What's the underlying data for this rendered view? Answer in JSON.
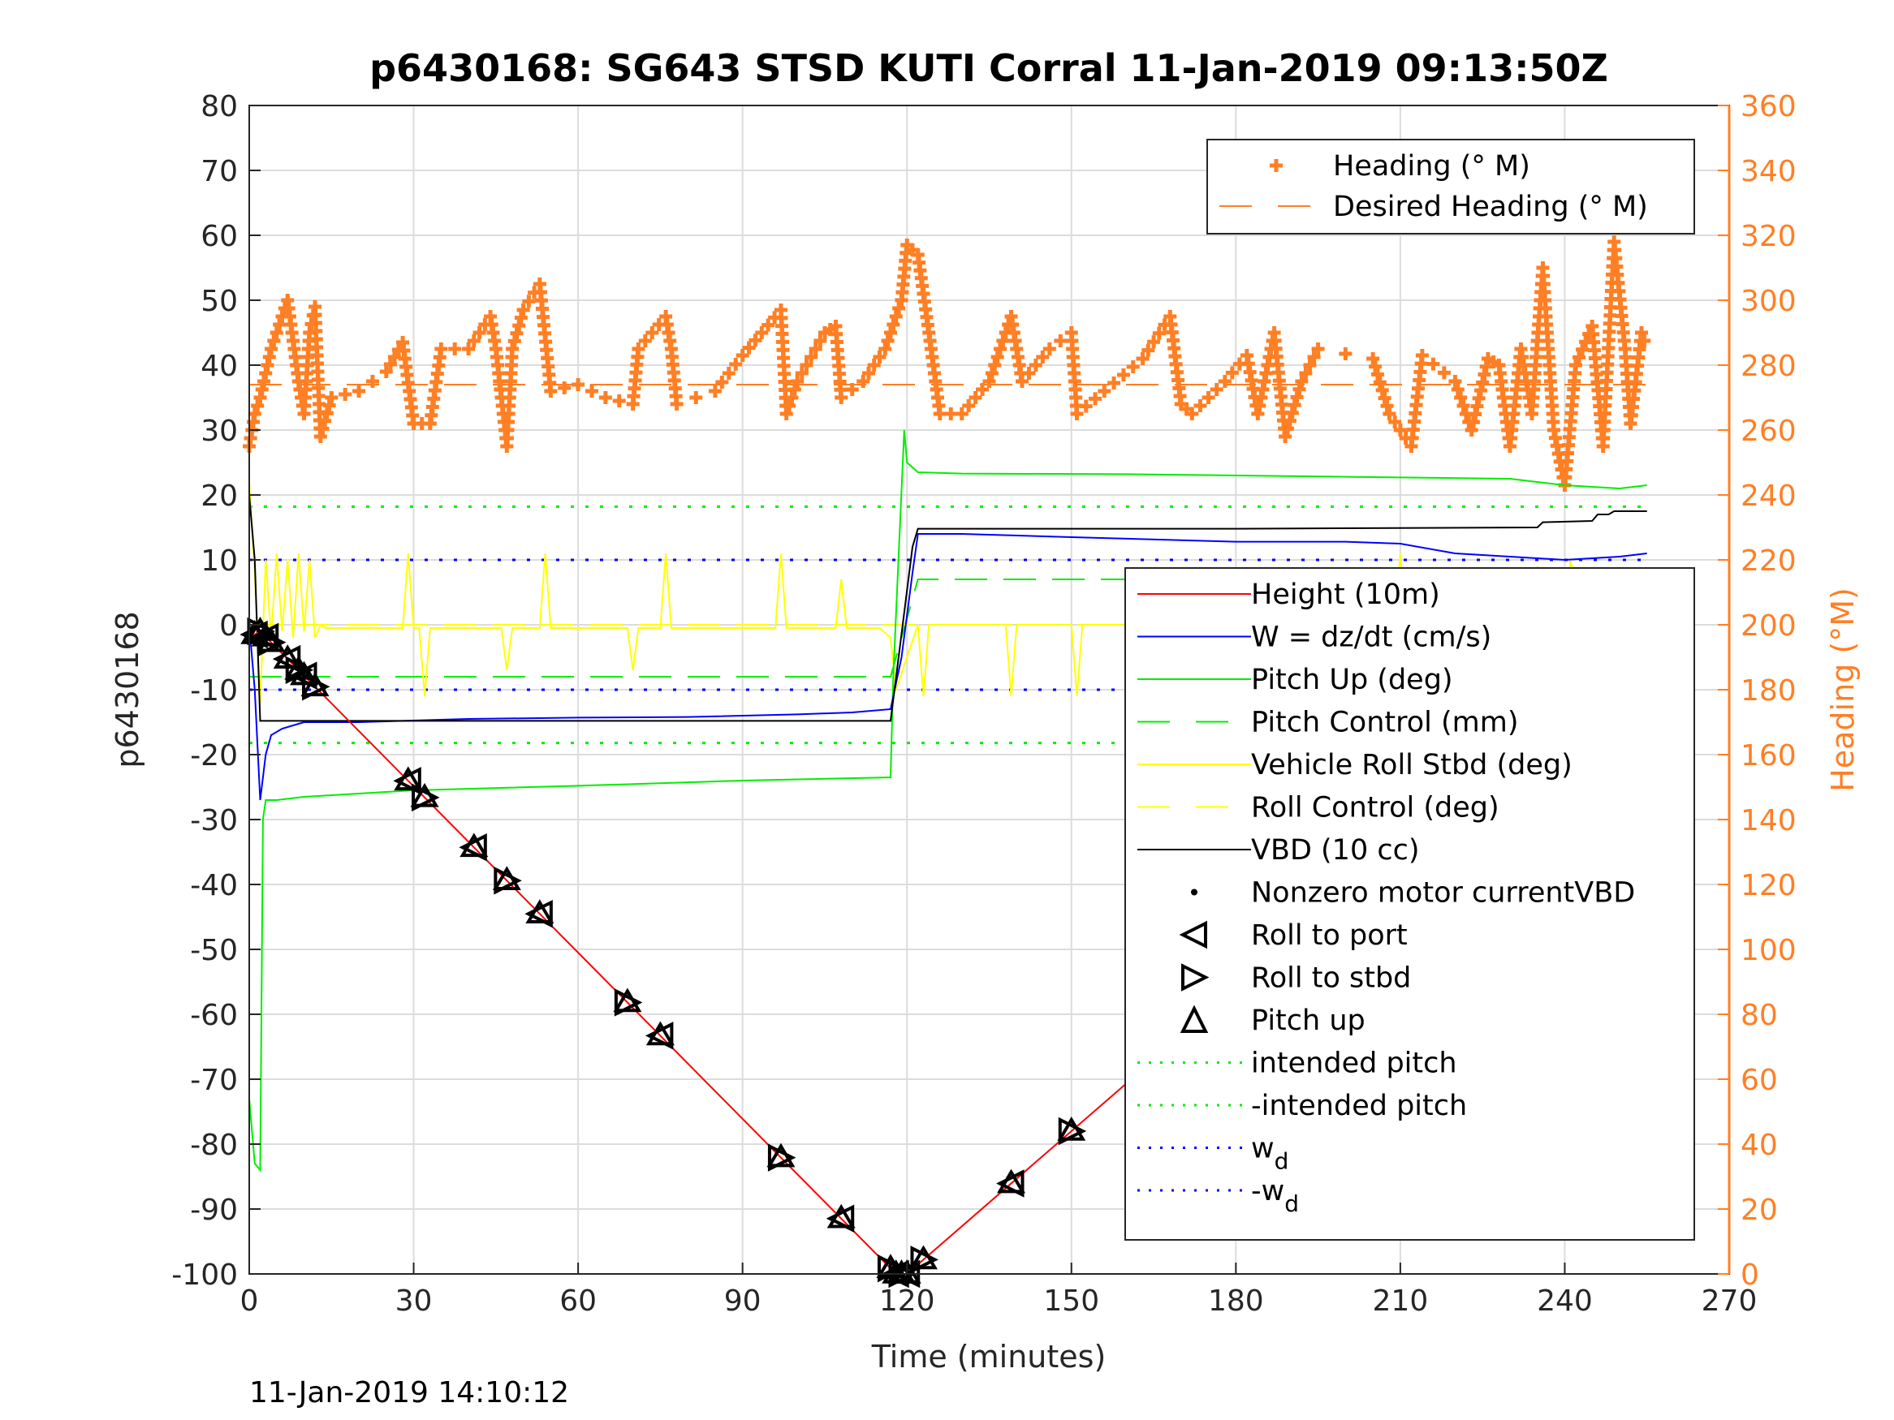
{
  "chart_data": {
    "type": "line",
    "title": "p6430168: SG643 STSD KUTI Corral 11-Jan-2019 09:13:50Z",
    "xlabel": "Time (minutes)",
    "ylabel": "p6430168",
    "ylabel_right": "Heading (°M)",
    "footer": "11-Jan-2019 14:10:12",
    "xlim": [
      0,
      270
    ],
    "ylim": [
      -100,
      80
    ],
    "ylim_right": [
      0,
      360
    ],
    "xticks": [
      "0",
      "30",
      "60",
      "90",
      "120",
      "150",
      "180",
      "210",
      "240",
      "270"
    ],
    "yticks": [
      "80",
      "70",
      "60",
      "50",
      "40",
      "30",
      "20",
      "10",
      "0",
      "-10",
      "-20",
      "-30",
      "-40",
      "-50",
      "-60",
      "-70",
      "-80",
      "-90",
      "-100"
    ],
    "yticks_right": [
      "360",
      "340",
      "320",
      "300",
      "280",
      "260",
      "240",
      "220",
      "200",
      "180",
      "160",
      "140",
      "120",
      "100",
      "80",
      "60",
      "40",
      "20",
      "0"
    ],
    "grid": true,
    "colors": {
      "heading": "#ff7f24",
      "height": "#ff0000",
      "w": "#0000ff",
      "pitch": "#00ee00",
      "roll": "#ffff00",
      "vbd": "#000000"
    },
    "legend_top": [
      {
        "label": "Heading (° M)",
        "style": "plus",
        "color": "#ff7f24"
      },
      {
        "label": "Desired Heading (° M)",
        "style": "dash",
        "color": "#ff7f24"
      }
    ],
    "legend_main": [
      {
        "label": "Height (10m)",
        "style": "solid",
        "color": "#ff0000"
      },
      {
        "label": "W = dz/dt (cm/s)",
        "style": "solid",
        "color": "#0000ff"
      },
      {
        "label": "Pitch Up (deg)",
        "style": "solid",
        "color": "#00ee00"
      },
      {
        "label": "Pitch Control (mm)",
        "style": "dash",
        "color": "#00ee00"
      },
      {
        "label": "Vehicle Roll Stbd (deg)",
        "style": "solid",
        "color": "#ffff00"
      },
      {
        "label": "Roll Control (deg)",
        "style": "dash",
        "color": "#ffff00"
      },
      {
        "label": "VBD (10 cc)",
        "style": "solid",
        "color": "#000000"
      },
      {
        "label": "Nonzero motor currentVBD",
        "style": "dot",
        "color": "#000000"
      },
      {
        "label": "Roll to port",
        "style": "tri-left",
        "color": "#000000"
      },
      {
        "label": "Roll to stbd",
        "style": "tri-right",
        "color": "#000000"
      },
      {
        "label": "Pitch up",
        "style": "tri-up",
        "color": "#000000"
      },
      {
        "label": "intended pitch",
        "style": "dotted",
        "color": "#00ee00"
      },
      {
        "label": "-intended pitch",
        "style": "dotted",
        "color": "#00ee00"
      },
      {
        "label": "w",
        "sub": "d",
        "style": "dotted",
        "color": "#0000ff"
      },
      {
        "label": "-w",
        "sub": "d",
        "style": "dotted",
        "color": "#0000ff"
      }
    ],
    "series": [
      {
        "name": "Height (10m)",
        "axis": "left",
        "x": [
          0,
          2,
          118,
          120,
          255
        ],
        "y": [
          -2,
          -1,
          -100,
          -100,
          -1
        ]
      },
      {
        "name": "W = dz/dt (cm/s)",
        "axis": "left",
        "x": [
          0,
          1,
          2,
          3,
          4,
          6,
          8,
          10,
          20,
          40,
          60,
          80,
          100,
          110,
          117,
          119,
          121,
          122,
          130,
          150,
          180,
          200,
          210,
          220,
          230,
          240,
          250,
          255
        ],
        "y": [
          0,
          -10,
          -27,
          -20,
          -17,
          -16,
          -15.5,
          -15,
          -15,
          -14.5,
          -14.3,
          -14.2,
          -13.8,
          -13.5,
          -13,
          -5,
          8,
          14,
          14,
          13.5,
          12.8,
          12.8,
          12.5,
          11,
          10.5,
          10,
          10.5,
          11
        ]
      },
      {
        "name": "Pitch Up (deg)",
        "axis": "left",
        "x": [
          0,
          1,
          2,
          2.5,
          3,
          5,
          10,
          30,
          60,
          90,
          117,
          117.5,
          119.5,
          120,
          122,
          130,
          160,
          200,
          230,
          240,
          250,
          255
        ],
        "y": [
          -73,
          -83,
          -84,
          -30,
          -27,
          -27,
          -26.5,
          -25.5,
          -24.8,
          -24,
          -23.5,
          -8,
          30,
          25,
          23.5,
          23.3,
          23.2,
          22.8,
          22.5,
          21.5,
          21,
          21.5
        ]
      },
      {
        "name": "Pitch Control (mm)",
        "axis": "left",
        "x": [
          0,
          117,
          122,
          255
        ],
        "y": [
          -8,
          -8,
          7,
          7
        ]
      },
      {
        "name": "Vehicle Roll Stbd (deg)",
        "axis": "left",
        "x": [
          0,
          1,
          2,
          3,
          4,
          5,
          6,
          7,
          8,
          9,
          10,
          11,
          12,
          13,
          14,
          28,
          29,
          30,
          31,
          32,
          33,
          34,
          46,
          47,
          48,
          53,
          54,
          55,
          56,
          69,
          70,
          71,
          75,
          76,
          77,
          78,
          96,
          97,
          98,
          107,
          108,
          109,
          115,
          117,
          118,
          122,
          123,
          124,
          125,
          138,
          139,
          140,
          141,
          150,
          151,
          152,
          165,
          166,
          167,
          182,
          183,
          184,
          193,
          194,
          195,
          209,
          210,
          211,
          220,
          221,
          222,
          223,
          227,
          228,
          229,
          233,
          234,
          235,
          239,
          240,
          241,
          245,
          246,
          247,
          251,
          252,
          253,
          254,
          255
        ],
        "y": [
          22,
          8,
          -12,
          10,
          -2,
          11,
          -1,
          10,
          -2,
          11,
          -1,
          10,
          -2,
          0,
          -0.5,
          -0.5,
          11,
          -0.5,
          -0.5,
          -11,
          -0.5,
          -0.5,
          -0.5,
          -7,
          -0.5,
          -0.5,
          11,
          -0.5,
          -0.5,
          -0.5,
          -7,
          -0.5,
          -0.5,
          11,
          -0.5,
          -0.5,
          -0.5,
          11,
          -0.5,
          -0.5,
          7,
          -0.5,
          -0.5,
          -2,
          -10,
          0,
          -11,
          0,
          0,
          0,
          -11,
          0,
          0,
          0,
          -11,
          0,
          0,
          -11,
          0,
          0,
          8,
          0,
          0,
          -11,
          0,
          0,
          11,
          0,
          0,
          8,
          -11,
          0,
          0,
          -11,
          8,
          0,
          -11,
          9,
          -2,
          -11,
          10,
          -3,
          -11,
          8,
          -3,
          -11,
          -4,
          -11,
          -6
        ]
      },
      {
        "name": "Roll Control (deg)",
        "axis": "left",
        "x": [
          0,
          255
        ],
        "y": [
          0,
          0
        ]
      },
      {
        "name": "VBD (10 cc)",
        "axis": "left",
        "x": [
          0,
          1,
          2,
          117,
          121,
          122,
          180,
          235,
          236,
          245,
          246,
          248,
          249,
          255
        ],
        "y": [
          20,
          10,
          -14.8,
          -14.8,
          12,
          14.8,
          14.8,
          15,
          15.8,
          16,
          17,
          17,
          17.5,
          17.5
        ]
      },
      {
        "name": "intended pitch",
        "axis": "left",
        "x": [
          0,
          255
        ],
        "y": [
          18.2,
          18.2
        ]
      },
      {
        "name": "-intended pitch",
        "axis": "left",
        "x": [
          0,
          255
        ],
        "y": [
          -18.2,
          -18.2
        ]
      },
      {
        "name": "w_d",
        "axis": "left",
        "x": [
          0,
          255
        ],
        "y": [
          10,
          10
        ]
      },
      {
        "name": "-w_d",
        "axis": "left",
        "x": [
          0,
          255
        ],
        "y": [
          -10,
          -10
        ]
      },
      {
        "name": "Desired Heading (° M)",
        "axis": "right",
        "x": [
          0,
          255
        ],
        "y": [
          274,
          274
        ]
      },
      {
        "name": "Heading (° M)",
        "axis": "right",
        "x": [
          0,
          1,
          2,
          4,
          6,
          7,
          9,
          10,
          11,
          12,
          13,
          15,
          20,
          25,
          28,
          30,
          33,
          35,
          40,
          44,
          45,
          47,
          48,
          50,
          53,
          55,
          60,
          65,
          70,
          71,
          76,
          77,
          78,
          85,
          90,
          97,
          98,
          100,
          105,
          107,
          108,
          112,
          116,
          119,
          120,
          122,
          124,
          126,
          130,
          135,
          139,
          141,
          146,
          150,
          151,
          156,
          163,
          168,
          170,
          172,
          178,
          182,
          184,
          187,
          189,
          192,
          195,
          205,
          208,
          212,
          214,
          220,
          223,
          226,
          228,
          230,
          232,
          234,
          236,
          238,
          240,
          242,
          245,
          247,
          249,
          251,
          252,
          254,
          255
        ],
        "y": [
          255,
          265,
          270,
          285,
          295,
          300,
          275,
          265,
          290,
          298,
          258,
          270,
          272,
          278,
          287,
          262,
          262,
          285,
          285,
          295,
          285,
          255,
          285,
          297,
          305,
          272,
          274,
          270,
          268,
          285,
          295,
          285,
          268,
          272,
          283,
          297,
          265,
          275,
          290,
          292,
          270,
          275,
          285,
          300,
          317,
          314,
          290,
          265,
          265,
          275,
          295,
          275,
          285,
          290,
          265,
          272,
          282,
          295,
          268,
          265,
          275,
          283,
          265,
          290,
          258,
          275,
          285,
          282,
          265,
          255,
          283,
          275,
          260,
          282,
          280,
          255,
          285,
          265,
          310,
          260,
          243,
          280,
          292,
          255,
          318,
          285,
          262,
          290,
          285
        ]
      }
    ],
    "roll_markers_t": [
      1,
      2,
      3,
      4,
      7,
      9,
      10,
      12,
      29,
      32,
      41,
      47,
      53,
      69,
      75,
      97,
      108,
      117,
      118,
      119,
      120,
      123,
      139,
      150,
      166,
      182,
      187,
      193,
      210,
      222,
      225,
      228,
      231,
      233,
      236,
      238,
      241,
      244,
      246,
      248,
      251,
      252,
      253
    ]
  }
}
